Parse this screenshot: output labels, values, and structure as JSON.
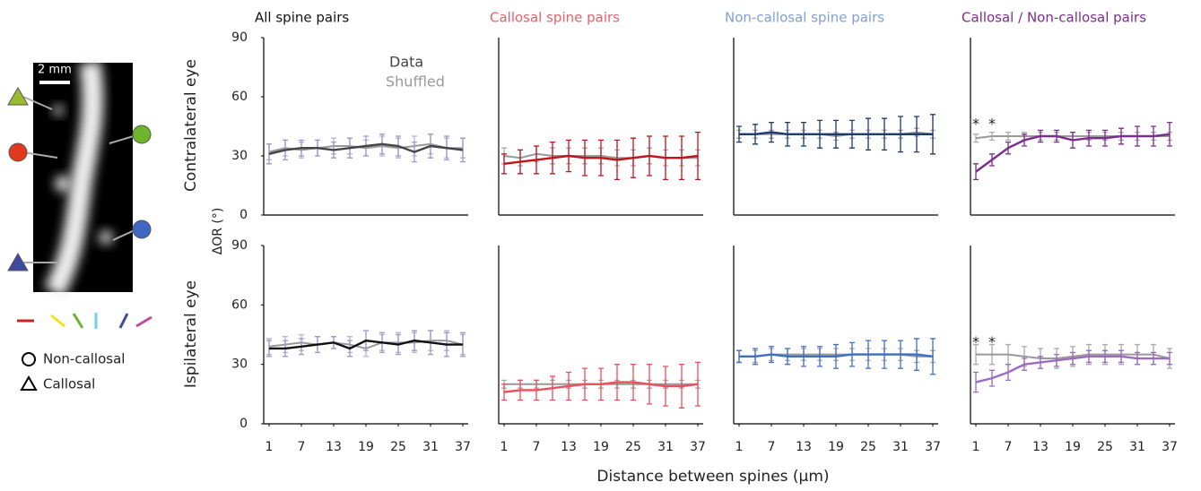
{
  "figure": {
    "y_label": "ΔOR (°)",
    "row_labels": [
      "Contralateral eye",
      "Ispilateral eye"
    ],
    "x_label": "Distance between spines (µm)"
  },
  "image": {
    "scale_bar": "2 mm",
    "legend": [
      "Non-callosal",
      "Callosal"
    ]
  },
  "chart_data": [
    {
      "type": "line",
      "title": "All spine pairs",
      "title_color": "#111111",
      "x": [
        1,
        4,
        7,
        10,
        13,
        16,
        19,
        22,
        25,
        28,
        31,
        34,
        37
      ],
      "xlim": [
        0,
        38
      ],
      "ylim": [
        0,
        90
      ],
      "yticks": [
        0,
        30,
        60,
        90
      ],
      "series": [
        {
          "name": "Data",
          "color": "#444444",
          "error_color": "#9e98c8",
          "values": [
            31,
            33,
            34,
            34,
            33,
            34,
            35,
            36,
            35,
            32,
            35,
            34,
            33
          ],
          "errors": [
            5,
            5,
            4,
            4,
            4,
            5,
            5,
            5,
            5,
            5,
            6,
            6,
            6
          ]
        },
        {
          "name": "Shuffled",
          "color": "#999999",
          "error_color": "#b8b4d8",
          "values": [
            32,
            34,
            33,
            34,
            35,
            35,
            34,
            35,
            34,
            35,
            36,
            34,
            34
          ],
          "errors": [
            4,
            4,
            4,
            4,
            4,
            4,
            4,
            5,
            5,
            5,
            5,
            5,
            5
          ]
        }
      ]
    },
    {
      "type": "line",
      "title": "Callosal spine pairs",
      "title_color": "#e8606a",
      "x": [
        1,
        4,
        7,
        10,
        13,
        16,
        19,
        22,
        25,
        28,
        31,
        34,
        37
      ],
      "xlim": [
        0,
        38
      ],
      "ylim": [
        0,
        90
      ],
      "series": [
        {
          "color": "#c0141c",
          "error_color": "#c0141c",
          "values": [
            26,
            27,
            28,
            29,
            30,
            29,
            29,
            28,
            29,
            30,
            29,
            29,
            30
          ],
          "errors": [
            5,
            6,
            7,
            8,
            8,
            9,
            9,
            10,
            10,
            10,
            11,
            11,
            12
          ]
        },
        {
          "color": "#999999",
          "error_color": "#aaaaaa",
          "values": [
            30,
            29,
            31,
            30,
            30,
            30,
            30,
            29,
            29,
            30,
            29,
            29,
            29
          ],
          "errors": [
            4,
            4,
            4,
            4,
            4,
            4,
            4,
            4,
            4,
            4,
            4,
            4,
            4
          ]
        }
      ]
    },
    {
      "type": "line",
      "title": "Non-callosal spine pairs",
      "title_color": "#7f9fd6",
      "x": [
        1,
        4,
        7,
        10,
        13,
        16,
        19,
        22,
        25,
        28,
        31,
        34,
        37
      ],
      "xlim": [
        0,
        38
      ],
      "ylim": [
        0,
        90
      ],
      "series": [
        {
          "color": "#1f3a6e",
          "error_color": "#1f3a6e",
          "values": [
            41,
            41,
            42,
            41,
            41,
            41,
            41,
            41,
            41,
            41,
            41,
            41,
            41
          ],
          "errors": [
            4,
            5,
            5,
            6,
            6,
            7,
            7,
            7,
            8,
            8,
            9,
            9,
            10
          ]
        },
        {
          "color": "#999999",
          "error_color": "#aaaaaa",
          "values": [
            41,
            41,
            41,
            41,
            41,
            41,
            40,
            41,
            41,
            41,
            41,
            42,
            41
          ],
          "errors": [
            2,
            2,
            2,
            2,
            2,
            2,
            2,
            2,
            2,
            2,
            2,
            2,
            2
          ]
        }
      ]
    },
    {
      "type": "line",
      "title": "Callosal / Non-callosal pairs",
      "title_color": "#7b2d8e",
      "x": [
        1,
        4,
        7,
        10,
        13,
        16,
        19,
        22,
        25,
        28,
        31,
        34,
        37
      ],
      "xlim": [
        0,
        38
      ],
      "ylim": [
        0,
        90
      ],
      "series": [
        {
          "color": "#7b2d8e",
          "error_color": "#7b2d8e",
          "values": [
            22,
            28,
            34,
            38,
            40,
            40,
            38,
            39,
            39,
            40,
            40,
            40,
            41
          ],
          "errors": [
            4,
            3,
            3,
            3,
            3,
            3,
            4,
            4,
            4,
            4,
            5,
            5,
            6
          ]
        },
        {
          "color": "#999999",
          "error_color": "#aaaaaa",
          "values": [
            39,
            40,
            40,
            40,
            40,
            40,
            40,
            40,
            40,
            40,
            40,
            40,
            40
          ],
          "errors": [
            2,
            2,
            2,
            2,
            2,
            2,
            2,
            2,
            2,
            2,
            2,
            2,
            2
          ]
        }
      ],
      "annotations": [
        {
          "text": "*",
          "x": 1,
          "y": 46
        },
        {
          "text": "*",
          "x": 4,
          "y": 46
        }
      ]
    },
    {
      "type": "line",
      "x": [
        1,
        4,
        7,
        10,
        13,
        16,
        19,
        22,
        25,
        28,
        31,
        34,
        37
      ],
      "xlim": [
        0,
        38
      ],
      "ylim": [
        0,
        90
      ],
      "yticks": [
        0,
        30,
        60,
        90
      ],
      "xticks": [
        1,
        7,
        13,
        19,
        25,
        31,
        37
      ],
      "series": [
        {
          "color": "#111111",
          "error_color": "#9e98c8",
          "values": [
            38,
            38,
            39,
            40,
            41,
            38,
            42,
            41,
            40,
            42,
            41,
            40,
            40
          ],
          "errors": [
            4,
            4,
            4,
            4,
            3,
            4,
            5,
            5,
            5,
            5,
            6,
            6,
            6
          ]
        },
        {
          "color": "#999999",
          "error_color": "#b8b4d8",
          "values": [
            39,
            40,
            41,
            40,
            41,
            40,
            38,
            41,
            41,
            41,
            42,
            42,
            40
          ],
          "errors": [
            4,
            4,
            4,
            4,
            3,
            4,
            4,
            4,
            5,
            5,
            5,
            5,
            5
          ]
        }
      ]
    },
    {
      "type": "line",
      "x": [
        1,
        4,
        7,
        10,
        13,
        16,
        19,
        22,
        25,
        28,
        31,
        34,
        37
      ],
      "xlim": [
        0,
        38
      ],
      "ylim": [
        0,
        90
      ],
      "xticks": [
        1,
        7,
        13,
        19,
        25,
        31,
        37
      ],
      "series": [
        {
          "color": "#e8505b",
          "error_color": "#e8505b",
          "values": [
            16,
            17,
            17,
            18,
            19,
            20,
            20,
            21,
            21,
            20,
            19,
            19,
            20
          ],
          "errors": [
            4,
            5,
            5,
            6,
            7,
            8,
            8,
            9,
            9,
            10,
            10,
            11,
            11
          ]
        },
        {
          "color": "#999999",
          "error_color": "#aaaaaa",
          "values": [
            20,
            20,
            20,
            20,
            20,
            20,
            20,
            20,
            20,
            20,
            20,
            20,
            20
          ],
          "errors": [
            2,
            2,
            2,
            2,
            2,
            2,
            2,
            2,
            2,
            2,
            2,
            2,
            2
          ]
        }
      ]
    },
    {
      "type": "line",
      "x": [
        1,
        4,
        7,
        10,
        13,
        16,
        19,
        22,
        25,
        28,
        31,
        34,
        37
      ],
      "xlim": [
        0,
        38
      ],
      "ylim": [
        0,
        90
      ],
      "xticks": [
        1,
        7,
        13,
        19,
        25,
        31,
        37
      ],
      "series": [
        {
          "color": "#3f6fc4",
          "error_color": "#3f6fc4",
          "values": [
            34,
            34,
            35,
            34,
            34,
            34,
            34,
            35,
            35,
            35,
            35,
            35,
            34
          ],
          "errors": [
            3,
            4,
            4,
            4,
            5,
            5,
            6,
            6,
            7,
            7,
            7,
            8,
            9
          ]
        },
        {
          "color": "#999999",
          "error_color": "#aaaaaa",
          "values": [
            34,
            34,
            35,
            35,
            35,
            35,
            35,
            35,
            35,
            35,
            35,
            34,
            34
          ],
          "errors": [
            3,
            3,
            3,
            3,
            3,
            3,
            3,
            3,
            3,
            3,
            3,
            3,
            3
          ]
        }
      ]
    },
    {
      "type": "line",
      "x": [
        1,
        4,
        7,
        10,
        13,
        16,
        19,
        22,
        25,
        28,
        31,
        34,
        37
      ],
      "xlim": [
        0,
        38
      ],
      "ylim": [
        0,
        90
      ],
      "xticks": [
        1,
        7,
        13,
        19,
        25,
        31,
        37
      ],
      "series": [
        {
          "color": "#9b6bc0",
          "error_color": "#9b6bc0",
          "values": [
            21,
            23,
            26,
            30,
            31,
            32,
            33,
            34,
            34,
            34,
            33,
            33,
            33
          ],
          "errors": [
            5,
            4,
            4,
            3,
            3,
            3,
            3,
            3,
            3,
            3,
            3,
            3,
            3
          ]
        },
        {
          "color": "#999999",
          "error_color": "#aaaaaa",
          "values": [
            35,
            35,
            35,
            34,
            33,
            33,
            34,
            35,
            35,
            35,
            35,
            35,
            33
          ],
          "errors": [
            5,
            5,
            5,
            5,
            5,
            5,
            5,
            5,
            5,
            5,
            5,
            5,
            5
          ]
        }
      ],
      "annotations": [
        {
          "text": "*",
          "x": 1,
          "y": 41
        },
        {
          "text": "*",
          "x": 4,
          "y": 41
        }
      ]
    }
  ]
}
